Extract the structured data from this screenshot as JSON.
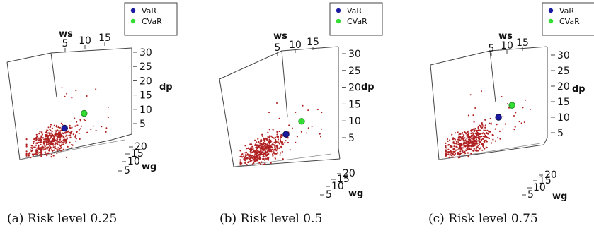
{
  "chart_data": [
    {
      "type": "scatter",
      "caption": "(a) Risk level 0.25",
      "axes": {
        "x": {
          "label": "ws",
          "ticks": [
            "5",
            "10",
            "15"
          ]
        },
        "y": {
          "label": "dp",
          "ticks": [
            "5",
            "10",
            "15",
            "20",
            "25",
            "30"
          ]
        },
        "z": {
          "label": "wg",
          "ticks": [
            "5",
            "10",
            "15",
            "20"
          ]
        }
      },
      "legend": {
        "placement": "top-right",
        "entries": [
          {
            "label": "VaR",
            "color": "#1a1aa0"
          },
          {
            "label": "CVaR",
            "color": "#33dd33"
          }
        ]
      },
      "points_color": "#b02020",
      "var_point": {
        "ws": 7.0,
        "dp": 11.0,
        "wg": 13.0
      },
      "cvar_point": {
        "ws": 10.5,
        "dp": 17.0,
        "wg": 13.0
      },
      "cloud": {
        "n": 420,
        "ws_mean": 4.5,
        "dp_mean": 5.5,
        "spread": 1.0
      }
    },
    {
      "type": "scatter",
      "caption": "(b) Risk level 0.5",
      "axes": {
        "x": {
          "label": "ws",
          "ticks": [
            "5",
            "10",
            "15"
          ]
        },
        "y": {
          "label": "dp",
          "ticks": [
            "5",
            "10",
            "15",
            "20",
            "25",
            "30"
          ]
        },
        "z": {
          "label": "wg",
          "ticks": [
            "5",
            "10",
            "15",
            "20"
          ]
        }
      },
      "legend": {
        "placement": "top-right",
        "entries": [
          {
            "label": "VaR",
            "color": "#1a1aa0"
          },
          {
            "label": "CVaR",
            "color": "#33dd33"
          }
        ]
      },
      "points_color": "#b02020",
      "var_point": {
        "ws": 9.0,
        "dp": 13.0,
        "wg": 13.0
      },
      "cvar_point": {
        "ws": 12.0,
        "dp": 19.0,
        "wg": 13.0
      },
      "cloud": {
        "n": 420,
        "ws_mean": 4.5,
        "dp_mean": 5.5,
        "spread": 1.0
      }
    },
    {
      "type": "scatter",
      "caption": "(c) Risk level 0.75",
      "axes": {
        "x": {
          "label": "ws",
          "ticks": [
            "5",
            "10",
            "15"
          ]
        },
        "y": {
          "label": "dp",
          "ticks": [
            "5",
            "10",
            "15",
            "20",
            "25",
            "30"
          ]
        },
        "z": {
          "label": "wg",
          "ticks": [
            "5",
            "10",
            "15",
            "20"
          ]
        }
      },
      "legend": {
        "placement": "top-right",
        "entries": [
          {
            "label": "VaR",
            "color": "#1a1aa0"
          },
          {
            "label": "CVaR",
            "color": "#33dd33"
          }
        ]
      },
      "points_color": "#b02020",
      "var_point": {
        "ws": 10.0,
        "dp": 16.0,
        "wg": 13.0
      },
      "cvar_point": {
        "ws": 12.5,
        "dp": 21.0,
        "wg": 13.0
      },
      "cloud": {
        "n": 420,
        "ws_mean": 4.5,
        "dp_mean": 5.5,
        "spread": 1.0
      }
    }
  ]
}
